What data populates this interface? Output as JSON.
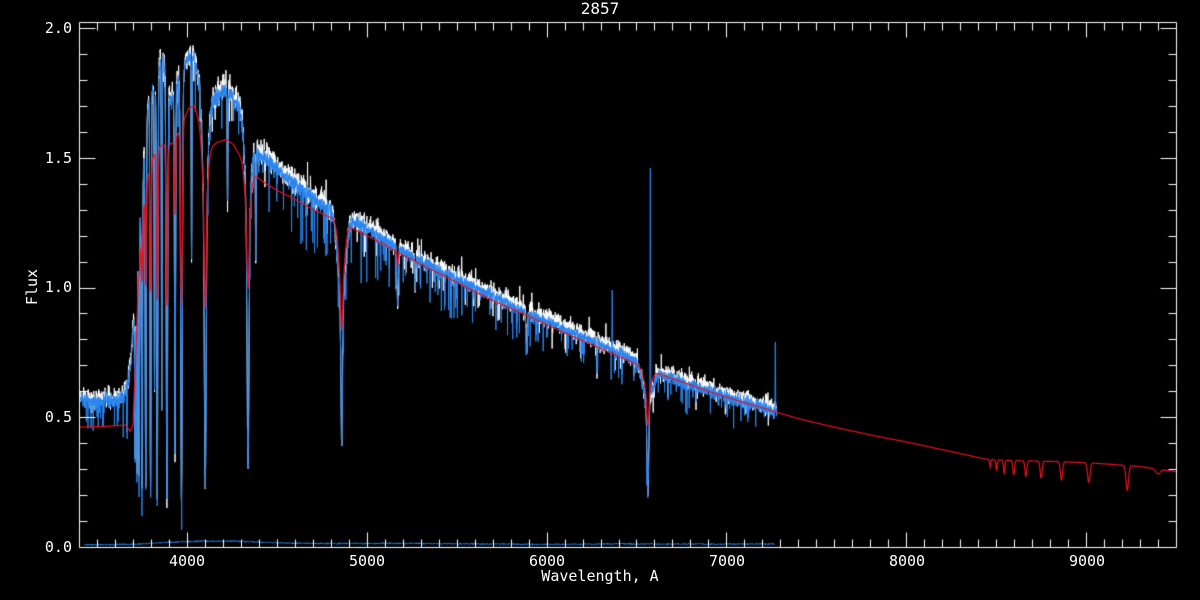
{
  "window": {
    "background": "#000000"
  },
  "chart_data": {
    "type": "line",
    "title": "2857",
    "xlabel": "Wavelength, A",
    "ylabel": "Flux",
    "xlim": [
      3400,
      9500
    ],
    "ylim": [
      0.0,
      2.0
    ],
    "x_major_ticks": [
      4000,
      5000,
      6000,
      7000,
      8000,
      9000
    ],
    "x_tick_labels": [
      "4000",
      "5000",
      "6000",
      "7000",
      "8000",
      "9000"
    ],
    "x_minor_step": 100,
    "y_major_ticks": [
      0.0,
      0.5,
      1.0,
      1.5,
      2.0
    ],
    "y_tick_labels": [
      "2.0",
      "1.5",
      "1.0",
      "0.5",
      "0.0"
    ],
    "y_minor_step": 0.1,
    "axis_color": "#ffffff",
    "background_color": "#000000",
    "grid": false,
    "legend": false,
    "continua": {
      "observed": [
        [
          3405,
          0.57
        ],
        [
          3450,
          0.565
        ],
        [
          3500,
          0.555
        ],
        [
          3540,
          0.57
        ],
        [
          3580,
          0.56
        ],
        [
          3620,
          0.565
        ],
        [
          3650,
          0.58
        ],
        [
          3670,
          0.62
        ],
        [
          3690,
          0.72
        ],
        [
          3710,
          0.95
        ],
        [
          3725,
          1.12
        ],
        [
          3740,
          1.28
        ],
        [
          3755,
          1.45
        ],
        [
          3770,
          1.6
        ],
        [
          3785,
          1.7
        ],
        [
          3800,
          1.72
        ],
        [
          3815,
          1.78
        ],
        [
          3830,
          1.84
        ],
        [
          3845,
          1.86
        ],
        [
          3860,
          1.88
        ],
        [
          3875,
          1.85
        ],
        [
          3890,
          1.78
        ],
        [
          3905,
          1.72
        ],
        [
          3920,
          1.73
        ],
        [
          3935,
          1.76
        ],
        [
          3950,
          1.79
        ],
        [
          3965,
          1.8
        ],
        [
          3980,
          1.83
        ],
        [
          3995,
          1.87
        ],
        [
          4010,
          1.89
        ],
        [
          4025,
          1.9
        ],
        [
          4040,
          1.88
        ],
        [
          4055,
          1.84
        ],
        [
          4070,
          1.79
        ],
        [
          4085,
          1.73
        ],
        [
          4115,
          1.68
        ],
        [
          4145,
          1.72
        ],
        [
          4175,
          1.74
        ],
        [
          4205,
          1.755
        ],
        [
          4235,
          1.75
        ],
        [
          4265,
          1.72
        ],
        [
          4290,
          1.7
        ],
        [
          4315,
          1.62
        ],
        [
          4360,
          1.53
        ],
        [
          4400,
          1.51
        ],
        [
          4450,
          1.49
        ],
        [
          4500,
          1.455
        ],
        [
          4550,
          1.425
        ],
        [
          4600,
          1.4
        ],
        [
          4650,
          1.37
        ],
        [
          4700,
          1.345
        ],
        [
          4750,
          1.32
        ],
        [
          4800,
          1.295
        ],
        [
          4830,
          1.28
        ],
        [
          4890,
          1.265
        ],
        [
          4950,
          1.245
        ],
        [
          5000,
          1.225
        ],
        [
          5050,
          1.205
        ],
        [
          5100,
          1.185
        ],
        [
          5150,
          1.16
        ],
        [
          5200,
          1.14
        ],
        [
          5250,
          1.12
        ],
        [
          5300,
          1.1
        ],
        [
          5350,
          1.085
        ],
        [
          5400,
          1.068
        ],
        [
          5450,
          1.05
        ],
        [
          5500,
          1.034
        ],
        [
          5550,
          1.018
        ],
        [
          5600,
          1.0
        ],
        [
          5650,
          0.985
        ],
        [
          5700,
          0.968
        ],
        [
          5750,
          0.952
        ],
        [
          5800,
          0.934
        ],
        [
          5850,
          0.917
        ],
        [
          5900,
          0.9
        ],
        [
          5950,
          0.886
        ],
        [
          6000,
          0.87
        ],
        [
          6050,
          0.855
        ],
        [
          6100,
          0.84
        ],
        [
          6150,
          0.825
        ],
        [
          6200,
          0.81
        ],
        [
          6250,
          0.795
        ],
        [
          6300,
          0.778
        ],
        [
          6350,
          0.762
        ],
        [
          6400,
          0.747
        ],
        [
          6450,
          0.732
        ],
        [
          6500,
          0.716
        ],
        [
          6540,
          0.7
        ],
        [
          6590,
          0.675
        ],
        [
          6650,
          0.662
        ],
        [
          6700,
          0.65
        ],
        [
          6750,
          0.637
        ],
        [
          6800,
          0.625
        ],
        [
          6850,
          0.613
        ],
        [
          6900,
          0.6
        ],
        [
          6950,
          0.59
        ],
        [
          7000,
          0.578
        ],
        [
          7050,
          0.567
        ],
        [
          7100,
          0.556
        ],
        [
          7150,
          0.546
        ],
        [
          7200,
          0.536
        ],
        [
          7250,
          0.527
        ],
        [
          7280,
          0.52
        ]
      ],
      "model": [
        [
          3400,
          0.462
        ],
        [
          3550,
          0.465
        ],
        [
          3620,
          0.468
        ],
        [
          3660,
          0.47
        ],
        [
          3685,
          0.445
        ],
        [
          3700,
          0.47
        ],
        [
          3715,
          0.72
        ],
        [
          3730,
          1.02
        ],
        [
          3755,
          1.28
        ],
        [
          3780,
          1.42
        ],
        [
          3810,
          1.5
        ],
        [
          3840,
          1.54
        ],
        [
          3870,
          1.55
        ],
        [
          3900,
          1.55
        ],
        [
          3930,
          1.56
        ],
        [
          3955,
          1.6
        ],
        [
          3985,
          1.65
        ],
        [
          4010,
          1.69
        ],
        [
          4040,
          1.7
        ],
        [
          4070,
          1.64
        ],
        [
          4130,
          1.54
        ],
        [
          4170,
          1.56
        ],
        [
          4220,
          1.57
        ],
        [
          4260,
          1.55
        ],
        [
          4300,
          1.5
        ],
        [
          4360,
          1.44
        ],
        [
          4400,
          1.42
        ],
        [
          4440,
          1.4
        ],
        [
          4500,
          1.375
        ],
        [
          4600,
          1.34
        ],
        [
          4700,
          1.3
        ],
        [
          4800,
          1.27
        ],
        [
          4900,
          1.235
        ],
        [
          5000,
          1.2
        ],
        [
          5100,
          1.165
        ],
        [
          5200,
          1.125
        ],
        [
          5300,
          1.09
        ],
        [
          5400,
          1.055
        ],
        [
          5500,
          1.02
        ],
        [
          5600,
          0.985
        ],
        [
          5700,
          0.95
        ],
        [
          5800,
          0.92
        ],
        [
          5900,
          0.89
        ],
        [
          6000,
          0.857
        ],
        [
          6100,
          0.825
        ],
        [
          6200,
          0.795
        ],
        [
          6300,
          0.765
        ],
        [
          6400,
          0.735
        ],
        [
          6500,
          0.705
        ],
        [
          6600,
          0.675
        ],
        [
          6700,
          0.648
        ],
        [
          6800,
          0.625
        ],
        [
          6900,
          0.6
        ],
        [
          7000,
          0.578
        ],
        [
          7100,
          0.556
        ],
        [
          7200,
          0.536
        ],
        [
          7300,
          0.515
        ],
        [
          7400,
          0.495
        ],
        [
          7500,
          0.478
        ],
        [
          7600,
          0.462
        ],
        [
          7700,
          0.447
        ],
        [
          7800,
          0.432
        ],
        [
          7900,
          0.418
        ],
        [
          8000,
          0.405
        ],
        [
          8100,
          0.39
        ],
        [
          8200,
          0.375
        ],
        [
          8300,
          0.36
        ],
        [
          8400,
          0.345
        ],
        [
          8460,
          0.337
        ],
        [
          8600,
          0.333
        ],
        [
          8800,
          0.33
        ],
        [
          9000,
          0.325
        ],
        [
          9150,
          0.318
        ],
        [
          9300,
          0.31
        ],
        [
          9400,
          0.3
        ],
        [
          9500,
          0.29
        ]
      ],
      "error": [
        [
          3430,
          0.008
        ],
        [
          3700,
          0.01
        ],
        [
          3900,
          0.018
        ],
        [
          4100,
          0.023
        ],
        [
          4300,
          0.022
        ],
        [
          4500,
          0.016
        ],
        [
          4800,
          0.013
        ],
        [
          5200,
          0.014
        ],
        [
          5600,
          0.012
        ],
        [
          6000,
          0.01
        ],
        [
          6400,
          0.012
        ],
        [
          6800,
          0.011
        ],
        [
          7270,
          0.012
        ]
      ]
    },
    "linesets": {
      "observed_lines": [
        {
          "c": 4861,
          "f": 0.9,
          "s": 20
        },
        {
          "c": 6563,
          "f": 0.56,
          "s": 26
        },
        {
          "c": 4340,
          "f": 1.25,
          "s": 14
        },
        {
          "c": 4102,
          "f": 1.32,
          "s": 14
        },
        {
          "c": 3712,
          "f": 0.33,
          "s": 2.5
        },
        {
          "c": 3722,
          "f": 0.3,
          "s": 2.5
        },
        {
          "c": 3734,
          "f": 0.28,
          "s": 2.5
        },
        {
          "c": 3750,
          "f": 0.25,
          "s": 3
        },
        {
          "c": 3771,
          "f": 0.22,
          "s": 3
        },
        {
          "c": 3798,
          "f": 0.2,
          "s": 3
        },
        {
          "c": 3820,
          "f": 0.6,
          "s": 2
        },
        {
          "c": 3835,
          "f": 0.18,
          "s": 3.5
        },
        {
          "c": 3860,
          "f": 0.55,
          "s": 2
        },
        {
          "c": 3889,
          "f": 0.18,
          "s": 4
        },
        {
          "c": 3934,
          "f": 0.45,
          "s": 3
        },
        {
          "c": 3970,
          "f": 0.19,
          "s": 4.5
        },
        {
          "c": 4026,
          "f": 1.1,
          "s": 2
        },
        {
          "c": 4102,
          "f": 0.23,
          "s": 5
        },
        {
          "c": 4226,
          "f": 1.3,
          "s": 2
        },
        {
          "c": 4340,
          "f": 0.3,
          "s": 5
        },
        {
          "c": 4383,
          "f": 1.1,
          "s": 2
        },
        {
          "c": 4861,
          "f": 0.385,
          "s": 4
        },
        {
          "c": 5172,
          "f": 0.93,
          "s": 4
        },
        {
          "c": 5270,
          "f": 1.0,
          "s": 3
        },
        {
          "c": 5890,
          "f": 0.75,
          "s": 4
        },
        {
          "c": 6280,
          "f": 0.68,
          "s": 2
        },
        {
          "c": 6563,
          "f": 0.21,
          "s": 5
        }
      ],
      "model_lines": [
        {
          "c": 4861,
          "f": 1.0,
          "s": 16
        },
        {
          "c": 6563,
          "f": 0.6,
          "s": 20
        },
        {
          "c": 4340,
          "f": 1.22,
          "s": 14
        },
        {
          "c": 4102,
          "f": 1.3,
          "s": 14
        },
        {
          "c": 3712,
          "f": 1.1,
          "s": 2.5
        },
        {
          "c": 3722,
          "f": 1.08,
          "s": 2.5
        },
        {
          "c": 3734,
          "f": 1.05,
          "s": 3
        },
        {
          "c": 3750,
          "f": 1.02,
          "s": 3
        },
        {
          "c": 3771,
          "f": 1.0,
          "s": 3
        },
        {
          "c": 3798,
          "f": 0.98,
          "s": 3.5
        },
        {
          "c": 3835,
          "f": 0.95,
          "s": 4
        },
        {
          "c": 3889,
          "f": 0.93,
          "s": 4.5
        },
        {
          "c": 3934,
          "f": 1.28,
          "s": 3
        },
        {
          "c": 3970,
          "f": 0.93,
          "s": 5
        },
        {
          "c": 4102,
          "f": 0.92,
          "s": 5
        },
        {
          "c": 4340,
          "f": 1.0,
          "s": 5
        },
        {
          "c": 4861,
          "f": 0.84,
          "s": 5
        },
        {
          "c": 5172,
          "f": 1.08,
          "s": 3
        },
        {
          "c": 6563,
          "f": 0.47,
          "s": 6
        }
      ]
    },
    "spikesets": {
      "sky_residual_spikes": [
        {
          "c": 6365,
          "p": 0.99,
          "s": 1.2
        },
        {
          "c": 6415,
          "p": 0.77,
          "s": 1.0
        },
        {
          "c": 6577,
          "p": 1.46,
          "s": 1.4
        },
        {
          "c": 7272,
          "p": 0.79,
          "s": 1.2
        }
      ]
    },
    "dipsets": {
      "paschen_series": [
        {
          "c": 8467,
          "d": 0.03,
          "s": 3
        },
        {
          "c": 8502,
          "d": 0.04,
          "s": 3.5
        },
        {
          "c": 8545,
          "d": 0.05,
          "s": 4
        },
        {
          "c": 8598,
          "d": 0.055,
          "s": 4.5
        },
        {
          "c": 8665,
          "d": 0.06,
          "s": 5
        },
        {
          "c": 8750,
          "d": 0.065,
          "s": 5.5
        },
        {
          "c": 8863,
          "d": 0.07,
          "s": 6
        },
        {
          "c": 9015,
          "d": 0.075,
          "s": 7
        },
        {
          "c": 9229,
          "d": 0.095,
          "s": 7
        },
        {
          "c": 9400,
          "d": 0.018,
          "s": 12
        }
      ]
    },
    "series": [
      {
        "name": "observed raw spectrum",
        "color": "#ffffff",
        "width": 1,
        "seed": 101,
        "range": [
          3405,
          7280
        ],
        "step": 1,
        "continuum": "observed",
        "offset": 0.012,
        "lines": "observed_lines",
        "noise": [
          [
            3405,
            0.03
          ],
          [
            3700,
            0.045
          ],
          [
            4300,
            0.045
          ],
          [
            5000,
            0.038
          ],
          [
            6000,
            0.032
          ],
          [
            7280,
            0.035
          ]
        ],
        "hairs": {
          "prob": 0.05,
          "up": 0.05,
          "amp": [
            [
              3405,
              0.06
            ],
            [
              4400,
              0.12
            ],
            [
              7280,
              0.08
            ]
          ]
        }
      },
      {
        "name": "observed calibrated spectrum",
        "color": "#2a85ee",
        "width": 1,
        "seed": 202,
        "range": [
          3405,
          7280
        ],
        "step": 1,
        "continuum": "observed",
        "offset": 0,
        "lines": "observed_lines",
        "spikes": "sky_residual_spikes",
        "noise": [
          [
            3405,
            0.022
          ],
          [
            3700,
            0.03
          ],
          [
            4300,
            0.03
          ],
          [
            5000,
            0.025
          ],
          [
            6000,
            0.02
          ],
          [
            7280,
            0.025
          ]
        ],
        "hairs": {
          "prob": 0.06,
          "up": 0,
          "amp": [
            [
              3405,
              0.08
            ],
            [
              3700,
              0.2
            ],
            [
              4400,
              0.22
            ],
            [
              5000,
              0.22
            ],
            [
              5600,
              0.15
            ],
            [
              6200,
              0.12
            ],
            [
              7280,
              0.12
            ]
          ]
        }
      },
      {
        "name": "error spectrum",
        "color": "#2a85ee",
        "width": 1,
        "seed": 303,
        "range": [
          3430,
          7268
        ],
        "step": 2,
        "continuum": "error",
        "offset": 0,
        "noise": [
          [
            3430,
            0.003
          ],
          [
            7268,
            0.003
          ]
        ]
      },
      {
        "name": "model template spectrum",
        "color": "#e8111d",
        "width": 1.2,
        "seed": 404,
        "range": [
          3400,
          9500
        ],
        "step": 1.5,
        "continuum": "model",
        "offset": 0,
        "lines": "model_lines",
        "dips": "paschen_series"
      }
    ]
  }
}
